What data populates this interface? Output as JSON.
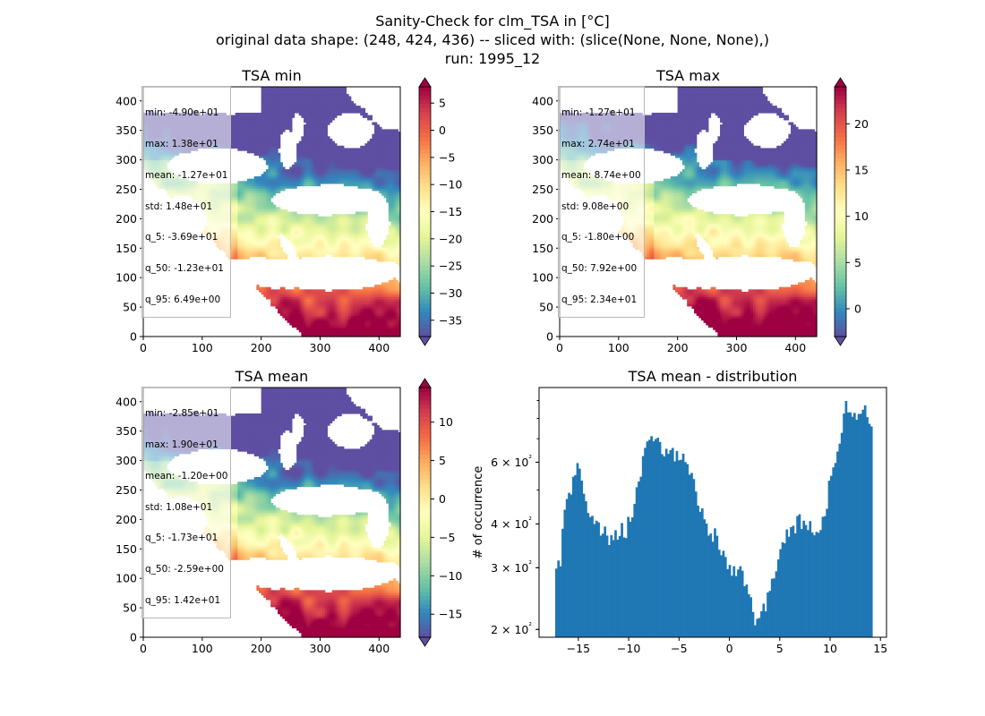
{
  "figure": {
    "title_lines": [
      "Sanity-Check for clm_TSA in [°C]",
      "original data shape: (248, 424, 436) -- sliced with: (slice(None, None, None),)",
      "run: 1995_12"
    ]
  },
  "chart_data": [
    {
      "id": "tsa_min",
      "type": "heatmap",
      "title": "TSA min",
      "xlim": [
        0,
        436
      ],
      "ylim": [
        0,
        424
      ],
      "xticks": [
        0,
        100,
        200,
        300,
        400
      ],
      "yticks": [
        0,
        50,
        100,
        150,
        200,
        250,
        300,
        350,
        400
      ],
      "colormap": "Spectral_r",
      "colorbar": {
        "min": -38,
        "max": 8,
        "ticks": [
          5,
          0,
          -5,
          -10,
          -15,
          -20,
          -25,
          -30,
          -35
        ],
        "extend": "both"
      },
      "stats": [
        "min: -4.90e+01",
        "max: 1.38e+01",
        "mean: -1.27e+01",
        "std: 1.48e+01",
        "q_5: -3.69e+01",
        "q_50: -1.23e+01",
        "q_95: 6.49e+00"
      ]
    },
    {
      "id": "tsa_max",
      "type": "heatmap",
      "title": "TSA max",
      "xlim": [
        0,
        436
      ],
      "ylim": [
        0,
        424
      ],
      "xticks": [
        0,
        100,
        200,
        300,
        400
      ],
      "yticks": [
        0,
        50,
        100,
        150,
        200,
        250,
        300,
        350,
        400
      ],
      "colormap": "Spectral_r",
      "colorbar": {
        "min": -3,
        "max": 24,
        "ticks": [
          20,
          15,
          10,
          5,
          0
        ],
        "extend": "both"
      },
      "stats": [
        "min: -1.27e+01",
        "max: 2.74e+01",
        "mean: 8.74e+00",
        "std: 9.08e+00",
        "q_5: -1.80e+00",
        "q_50: 7.92e+00",
        "q_95: 2.34e+01"
      ]
    },
    {
      "id": "tsa_mean",
      "type": "heatmap",
      "title": "TSA mean",
      "xlim": [
        0,
        436
      ],
      "ylim": [
        0,
        424
      ],
      "xticks": [
        0,
        100,
        200,
        300,
        400
      ],
      "yticks": [
        0,
        50,
        100,
        150,
        200,
        250,
        300,
        350,
        400
      ],
      "colormap": "Spectral_r",
      "colorbar": {
        "min": -18,
        "max": 14.5,
        "ticks": [
          10,
          5,
          0,
          -5,
          -10,
          -15
        ],
        "extend": "both"
      },
      "stats": [
        "min: -2.85e+01",
        "max: 1.90e+01",
        "mean: -1.20e+00",
        "std: 1.08e+01",
        "q_5: -1.73e+01",
        "q_50: -2.59e+00",
        "q_95: 1.42e+01"
      ]
    },
    {
      "id": "tsa_mean_distribution",
      "type": "bar",
      "title": "TSA mean - distribution",
      "ylabel": "# of occurrence",
      "yscale": "log",
      "color": "#1f77b4",
      "xlim": [
        -18.9,
        15.6
      ],
      "ylim": [
        190,
        980
      ],
      "xticks": [
        -15,
        -10,
        -5,
        0,
        5,
        10,
        15
      ],
      "yticks": [
        {
          "value": 200,
          "label": "2 × 10²"
        },
        {
          "value": 300,
          "label": "3 × 10²"
        },
        {
          "value": 400,
          "label": "4 × 10²"
        },
        {
          "value": 600,
          "label": "6 × 10²"
        }
      ],
      "bin_range": [
        -17.3,
        14.2
      ],
      "anchors": [
        [
          -17.3,
          310
        ],
        [
          -17.0,
          305
        ],
        [
          -16.8,
          285
        ],
        [
          -16.6,
          390
        ],
        [
          -16.3,
          420
        ],
        [
          -16.0,
          470
        ],
        [
          -15.8,
          500
        ],
        [
          -15.5,
          520
        ],
        [
          -15.2,
          560
        ],
        [
          -14.9,
          600
        ],
        [
          -14.6,
          520
        ],
        [
          -14.3,
          470
        ],
        [
          -14.0,
          440
        ],
        [
          -13.7,
          420
        ],
        [
          -13.4,
          410
        ],
        [
          -13.1,
          390
        ],
        [
          -12.7,
          380
        ],
        [
          -12.3,
          370
        ],
        [
          -11.9,
          360
        ],
        [
          -11.5,
          370
        ],
        [
          -11.1,
          380
        ],
        [
          -10.7,
          390
        ],
        [
          -10.3,
          380
        ],
        [
          -10.0,
          400
        ],
        [
          -9.6,
          440
        ],
        [
          -9.2,
          500
        ],
        [
          -8.8,
          560
        ],
        [
          -8.4,
          630
        ],
        [
          -8.0,
          680
        ],
        [
          -7.6,
          720
        ],
        [
          -7.3,
          700
        ],
        [
          -7.0,
          680
        ],
        [
          -6.6,
          650
        ],
        [
          -6.2,
          640
        ],
        [
          -5.8,
          630
        ],
        [
          -5.4,
          630
        ],
        [
          -5.0,
          630
        ],
        [
          -4.6,
          610
        ],
        [
          -4.2,
          580
        ],
        [
          -3.8,
          545
        ],
        [
          -3.4,
          500
        ],
        [
          -3.0,
          455
        ],
        [
          -2.6,
          425
        ],
        [
          -2.2,
          400
        ],
        [
          -1.8,
          380
        ],
        [
          -1.4,
          365
        ],
        [
          -1.0,
          345
        ],
        [
          -0.6,
          325
        ],
        [
          -0.2,
          310
        ],
        [
          0.2,
          300
        ],
        [
          0.6,
          300
        ],
        [
          1.0,
          290
        ],
        [
          1.4,
          275
        ],
        [
          1.8,
          255
        ],
        [
          2.1,
          235
        ],
        [
          2.4,
          220
        ],
        [
          2.7,
          210
        ],
        [
          3.0,
          215
        ],
        [
          3.4,
          225
        ],
        [
          3.8,
          245
        ],
        [
          4.2,
          270
        ],
        [
          4.6,
          300
        ],
        [
          5.0,
          330
        ],
        [
          5.4,
          355
        ],
        [
          5.8,
          380
        ],
        [
          6.2,
          395
        ],
        [
          6.6,
          395
        ],
        [
          7.0,
          405
        ],
        [
          7.4,
          405
        ],
        [
          7.8,
          395
        ],
        [
          8.2,
          380
        ],
        [
          8.6,
          370
        ],
        [
          9.0,
          375
        ],
        [
          9.4,
          420
        ],
        [
          9.8,
          490
        ],
        [
          10.2,
          560
        ],
        [
          10.6,
          620
        ],
        [
          11.0,
          720
        ],
        [
          11.3,
          800
        ],
        [
          11.6,
          880
        ],
        [
          11.9,
          840
        ],
        [
          12.3,
          800
        ],
        [
          12.7,
          810
        ],
        [
          13.1,
          820
        ],
        [
          13.5,
          830
        ],
        [
          13.9,
          780
        ],
        [
          14.2,
          780
        ]
      ]
    }
  ]
}
